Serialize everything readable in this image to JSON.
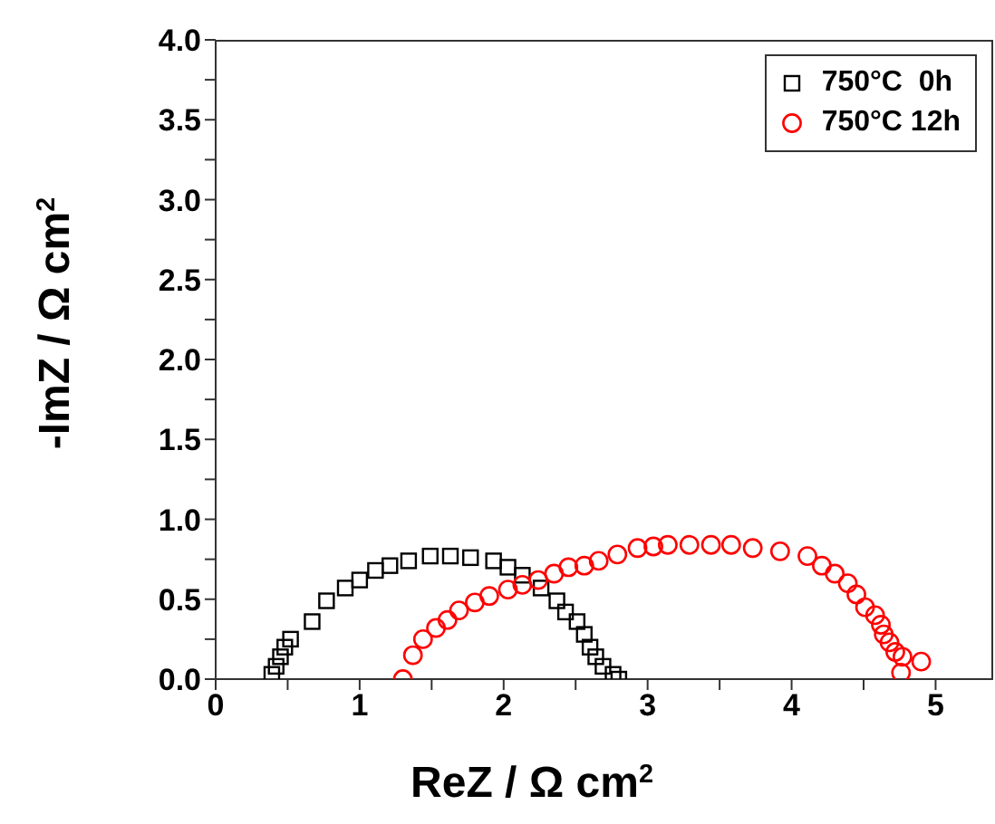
{
  "chart_data": {
    "type": "scatter",
    "xlabel": "ReZ / Ω cm$^{2}$",
    "ylabel": "-ImZ / Ω cm$^{2}$",
    "xlim": [
      0,
      5.4
    ],
    "ylim": [
      0,
      4
    ],
    "xticks": [
      0,
      {
        "value": 0.5,
        "label": null
      },
      1,
      {
        "value": 1.5,
        "label": null
      },
      2,
      {
        "value": 2.5,
        "label": null
      },
      3,
      {
        "value": 3.5,
        "label": null
      },
      4,
      {
        "value": 4.5,
        "label": null
      },
      5
    ],
    "yticks": [
      {
        "value": 0,
        "label": "0.0"
      },
      {
        "value": 0.25,
        "label": null
      },
      {
        "value": 0.5,
        "label": "0.5"
      },
      {
        "value": 0.75,
        "label": null
      },
      {
        "value": 1,
        "label": "1.0"
      },
      {
        "value": 1.25,
        "label": null
      },
      {
        "value": 1.5,
        "label": "1.5"
      },
      {
        "value": 1.75,
        "label": null
      },
      {
        "value": 2,
        "label": "2.0"
      },
      {
        "value": 2.25,
        "label": null
      },
      {
        "value": 2.5,
        "label": "2.5"
      },
      {
        "value": 2.75,
        "label": null
      },
      {
        "value": 3,
        "label": "3.0"
      },
      {
        "value": 3.25,
        "label": null
      },
      {
        "value": 3.5,
        "label": "3.5"
      },
      {
        "value": 3.75,
        "label": null
      },
      {
        "value": 4,
        "label": "4.0"
      }
    ],
    "grid": false,
    "legend": "top right",
    "series": [
      {
        "name": "750°C  0h",
        "color": "#000000",
        "marker": "square",
        "x": [
          0.39,
          0.42,
          0.45,
          0.48,
          0.52,
          0.67,
          0.77,
          0.9,
          1.0,
          1.11,
          1.21,
          1.34,
          1.49,
          1.63,
          1.77,
          1.93,
          2.03,
          2.13,
          2.26,
          2.37,
          2.43,
          2.51,
          2.56,
          2.6,
          2.64,
          2.69,
          2.76,
          2.8
        ],
        "values": [
          0.03,
          0.08,
          0.14,
          0.2,
          0.25,
          0.36,
          0.49,
          0.57,
          0.62,
          0.68,
          0.71,
          0.74,
          0.77,
          0.77,
          0.76,
          0.74,
          0.7,
          0.65,
          0.57,
          0.49,
          0.42,
          0.36,
          0.28,
          0.2,
          0.14,
          0.08,
          0.03,
          0.0
        ]
      },
      {
        "name": "750°C 12h",
        "color": "#ff0000",
        "marker": "circle",
        "x": [
          1.3,
          1.37,
          1.44,
          1.53,
          1.61,
          1.69,
          1.8,
          1.9,
          2.03,
          2.13,
          2.24,
          2.35,
          2.45,
          2.56,
          2.66,
          2.79,
          2.93,
          3.04,
          3.14,
          3.29,
          3.44,
          3.58,
          3.73,
          3.92,
          4.11,
          4.21,
          4.3,
          4.39,
          4.45,
          4.51,
          4.58,
          4.62,
          4.64,
          4.68,
          4.72,
          4.77,
          4.9,
          4.76
        ],
        "values": [
          0.0,
          0.15,
          0.25,
          0.32,
          0.37,
          0.43,
          0.48,
          0.52,
          0.56,
          0.59,
          0.62,
          0.66,
          0.7,
          0.71,
          0.74,
          0.78,
          0.82,
          0.83,
          0.84,
          0.84,
          0.84,
          0.84,
          0.82,
          0.8,
          0.77,
          0.71,
          0.66,
          0.6,
          0.53,
          0.45,
          0.4,
          0.34,
          0.28,
          0.23,
          0.17,
          0.14,
          0.11,
          0.04
        ]
      }
    ]
  }
}
